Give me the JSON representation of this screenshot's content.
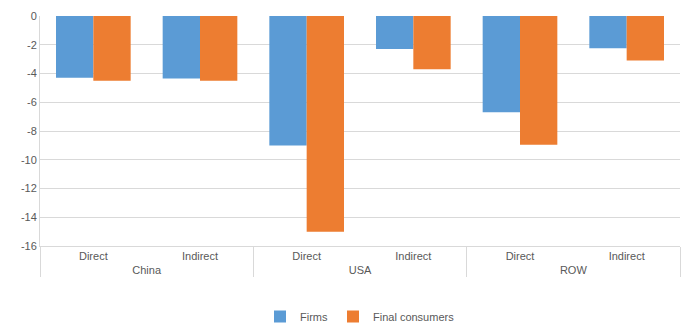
{
  "chart_data": {
    "type": "bar",
    "categories": [
      [
        "China",
        "Direct"
      ],
      [
        "China",
        "Indirect"
      ],
      [
        "USA",
        "Direct"
      ],
      [
        "USA",
        "Indirect"
      ],
      [
        "ROW",
        "Direct"
      ],
      [
        "ROW",
        "Indirect"
      ]
    ],
    "series": [
      {
        "name": "Firms",
        "color": "#5b9bd5",
        "values": [
          -4.3,
          -4.35,
          -9.0,
          -2.3,
          -6.7,
          -2.25
        ]
      },
      {
        "name": "Final consumers",
        "color": "#ed7d31",
        "values": [
          -4.5,
          -4.5,
          -15.0,
          -3.7,
          -8.95,
          -3.1
        ]
      }
    ],
    "ylim": [
      -16,
      0
    ],
    "yticks": [
      0,
      -2,
      -4,
      -6,
      -8,
      -10,
      -12,
      -14,
      -16
    ],
    "grid": true,
    "legend": "bottom"
  }
}
